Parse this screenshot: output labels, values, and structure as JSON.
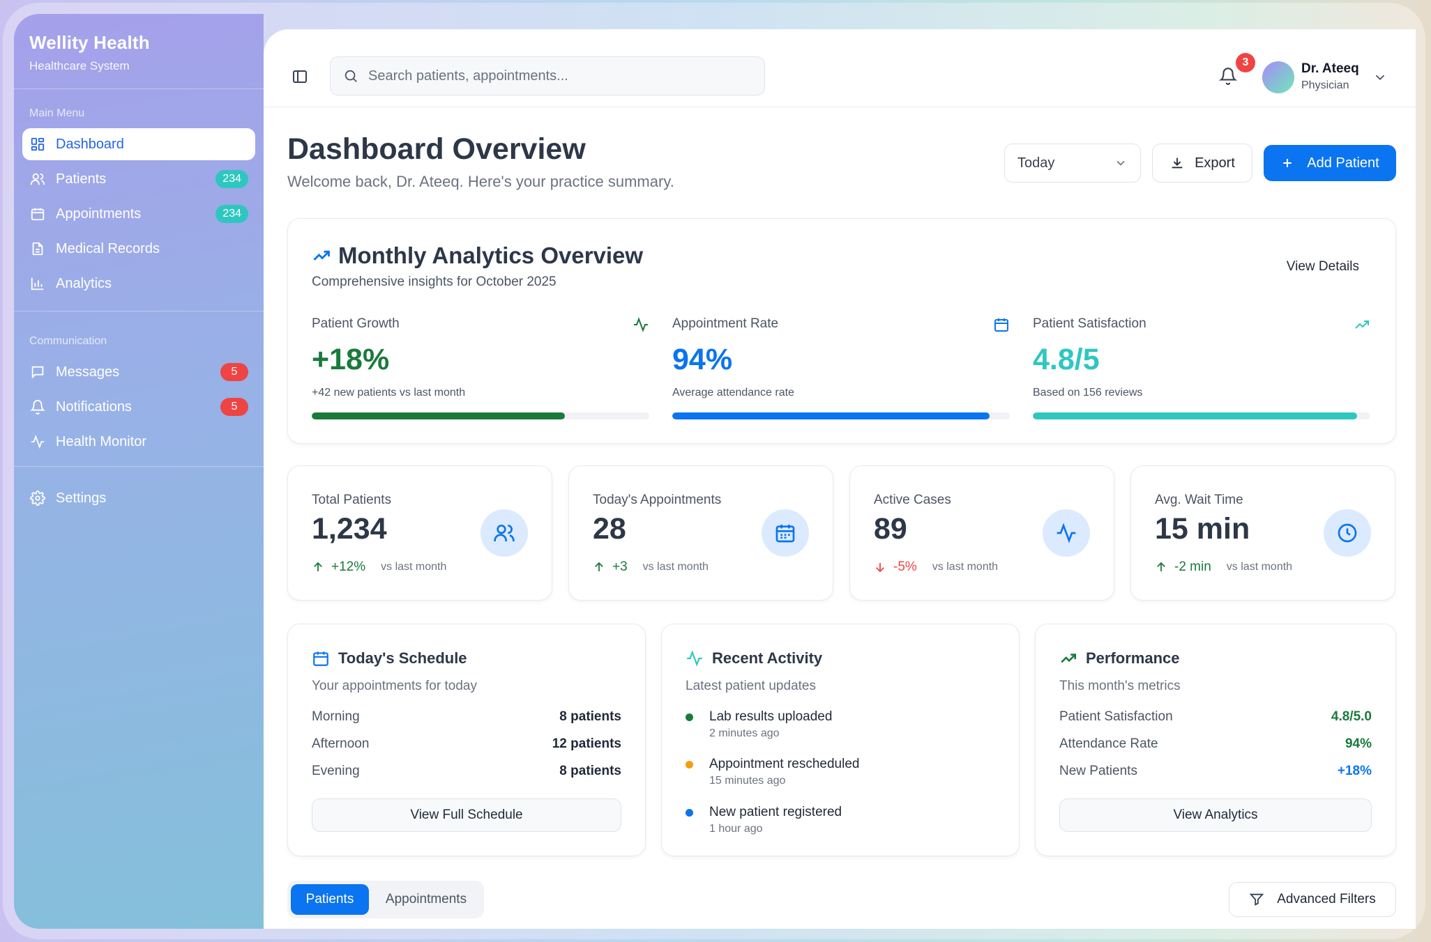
{
  "brand": {
    "name": "Wellity Health",
    "subtitle": "Healthcare System"
  },
  "sidebar": {
    "main_label": "Main Menu",
    "main_items": [
      {
        "label": "Dashboard",
        "icon": "dashboard-grid-icon",
        "active": true
      },
      {
        "label": "Patients",
        "icon": "users-icon",
        "badge": "234"
      },
      {
        "label": "Appointments",
        "icon": "calendar-icon",
        "badge": "234"
      },
      {
        "label": "Medical Records",
        "icon": "file-text-icon"
      },
      {
        "label": "Analytics",
        "icon": "bar-chart-icon"
      }
    ],
    "comm_label": "Communication",
    "comm_items": [
      {
        "label": "Messages",
        "icon": "message-icon",
        "badge": "5"
      },
      {
        "label": "Notifications",
        "icon": "bell-icon",
        "badge": "5"
      },
      {
        "label": "Health Monitor",
        "icon": "activity-icon"
      }
    ],
    "settings": {
      "label": "Settings",
      "icon": "gear-icon"
    }
  },
  "topbar": {
    "search_placeholder": "Search patients, appointments...",
    "notification_count": "3",
    "user": {
      "name": "Dr. Ateeq",
      "role": "Physician"
    }
  },
  "header": {
    "title": "Dashboard Overview",
    "subtitle": "Welcome back, Dr. Ateeq. Here's your practice summary.",
    "period": "Today",
    "export_label": "Export",
    "add_label": "Add Patient"
  },
  "analytics": {
    "title": "Monthly Analytics Overview",
    "subtitle": "Comprehensive insights for October 2025",
    "view_details": "View Details",
    "metrics": [
      {
        "label": "Patient Growth",
        "value": "+18%",
        "note": "+42 new patients vs last month",
        "progress": 0.75,
        "color": "#1a7a3c",
        "icon": "activity-icon"
      },
      {
        "label": "Appointment Rate",
        "value": "94%",
        "note": "Average attendance rate",
        "progress": 0.94,
        "color": "#0b74f0",
        "icon": "calendar-icon"
      },
      {
        "label": "Patient Satisfaction",
        "value": "4.8/5",
        "note": "Based on 156 reviews",
        "progress": 0.96,
        "color": "#2ec7c0",
        "icon": "trending-up-icon"
      }
    ]
  },
  "stats": [
    {
      "label": "Total Patients",
      "value": "1,234",
      "change": "+12%",
      "direction": "up",
      "vs": "vs last month",
      "icon": "users-icon"
    },
    {
      "label": "Today's Appointments",
      "value": "28",
      "change": "+3",
      "direction": "up",
      "vs": "vs last month",
      "icon": "calendar-icon"
    },
    {
      "label": "Active Cases",
      "value": "89",
      "change": "-5%",
      "direction": "down",
      "vs": "vs last month",
      "icon": "activity-icon"
    },
    {
      "label": "Avg. Wait Time",
      "value": "15 min",
      "change": "-2 min",
      "direction": "up",
      "vs": "vs last month",
      "icon": "clock-icon"
    }
  ],
  "schedule": {
    "title": "Today's Schedule",
    "subtitle": "Your appointments for today",
    "rows": [
      {
        "label": "Morning",
        "value": "8 patients"
      },
      {
        "label": "Afternoon",
        "value": "12 patients"
      },
      {
        "label": "Evening",
        "value": "8 patients"
      }
    ],
    "button": "View Full Schedule"
  },
  "activity": {
    "title": "Recent Activity",
    "subtitle": "Latest patient updates",
    "items": [
      {
        "title": "Lab results uploaded",
        "time": "2 minutes ago",
        "color": "#1a7a3c"
      },
      {
        "title": "Appointment rescheduled",
        "time": "15 minutes ago",
        "color": "#f59e0b"
      },
      {
        "title": "New patient registered",
        "time": "1 hour ago",
        "color": "#0b74f0"
      }
    ]
  },
  "performance": {
    "title": "Performance",
    "subtitle": "This month's metrics",
    "rows": [
      {
        "label": "Patient Satisfaction",
        "value": "4.8/5.0",
        "color": "#1a7a3c"
      },
      {
        "label": "Attendance Rate",
        "value": "94%",
        "color": "#1a7a3c"
      },
      {
        "label": "New Patients",
        "value": "+18%",
        "color": "#0b74f0"
      }
    ],
    "button": "View Analytics"
  },
  "bottom": {
    "tab_active": "Patients",
    "tab_inactive": "Appointments",
    "filters": "Advanced Filters"
  }
}
